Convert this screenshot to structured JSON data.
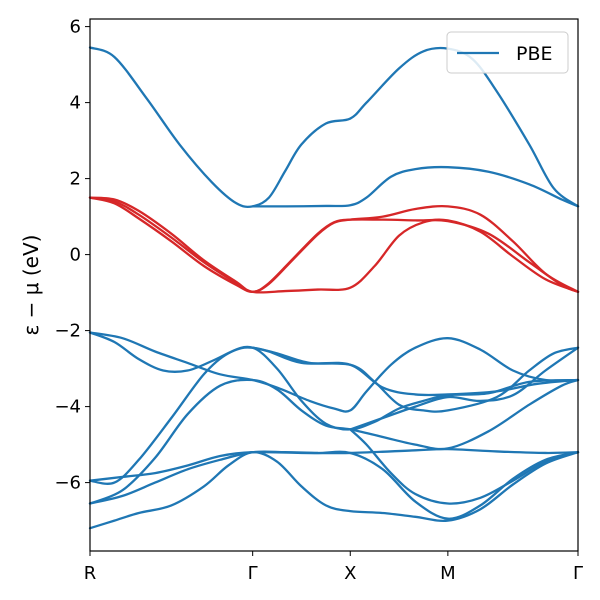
{
  "chart_data": {
    "type": "line",
    "title": "",
    "xlabel": "",
    "ylabel": "ε − μ (eV)",
    "ylim": [
      -7.8,
      6.2
    ],
    "xlim": [
      0,
      3
    ],
    "grid": false,
    "legend_position": "top-right",
    "legend": [
      {
        "name": "PBE",
        "color": "#1f77b4"
      }
    ],
    "x_ticks": [
      {
        "value": 0,
        "label": "R"
      },
      {
        "value": 1,
        "label": "Γ"
      },
      {
        "value": 1.6,
        "label": "X"
      },
      {
        "value": 2.2,
        "label": "M"
      },
      {
        "value": 3,
        "label": "Γ"
      }
    ],
    "y_ticks": [
      {
        "value": 6,
        "label": "6"
      },
      {
        "value": 4,
        "label": "4"
      },
      {
        "value": 2,
        "label": "2"
      },
      {
        "value": 0,
        "label": "0"
      },
      {
        "value": -2,
        "label": "−2"
      },
      {
        "value": -4,
        "label": "−4"
      },
      {
        "value": -6,
        "label": "−6"
      }
    ],
    "colors": {
      "bands": "#1f77b4",
      "highlight": "#d62728"
    },
    "series": [
      {
        "color": "#1f77b4",
        "points": [
          [
            0,
            5.45
          ],
          [
            0.15,
            5.2
          ],
          [
            0.35,
            4.1
          ],
          [
            0.55,
            2.9
          ],
          [
            0.75,
            1.9
          ],
          [
            0.9,
            1.35
          ],
          [
            1.0,
            1.27
          ],
          [
            1.1,
            1.5
          ],
          [
            1.2,
            2.2
          ],
          [
            1.3,
            2.9
          ],
          [
            1.45,
            3.45
          ],
          [
            1.6,
            3.58
          ],
          [
            1.7,
            4.0
          ],
          [
            1.9,
            4.9
          ],
          [
            2.05,
            5.35
          ],
          [
            2.2,
            5.42
          ],
          [
            2.35,
            5.15
          ],
          [
            2.5,
            4.3
          ],
          [
            2.7,
            2.9
          ],
          [
            2.85,
            1.75
          ],
          [
            3.0,
            1.27
          ]
        ]
      },
      {
        "color": "#1f77b4",
        "points": [
          [
            1.0,
            1.27
          ],
          [
            1.2,
            1.27
          ],
          [
            1.45,
            1.28
          ],
          [
            1.6,
            1.3
          ],
          [
            1.7,
            1.5
          ],
          [
            1.85,
            2.05
          ],
          [
            2.0,
            2.25
          ],
          [
            2.2,
            2.3
          ],
          [
            2.45,
            2.18
          ],
          [
            2.7,
            1.85
          ],
          [
            2.9,
            1.45
          ],
          [
            3.0,
            1.27
          ]
        ]
      },
      {
        "color": "#d62728",
        "points": [
          [
            0,
            1.5
          ],
          [
            0.15,
            1.4
          ],
          [
            0.3,
            1.05
          ],
          [
            0.5,
            0.45
          ],
          [
            0.7,
            -0.2
          ],
          [
            0.9,
            -0.75
          ],
          [
            1.0,
            -0.98
          ],
          [
            1.1,
            -0.75
          ],
          [
            1.25,
            -0.1
          ],
          [
            1.4,
            0.55
          ],
          [
            1.5,
            0.85
          ],
          [
            1.6,
            0.92
          ],
          [
            1.8,
            0.92
          ],
          [
            2.0,
            0.9
          ],
          [
            2.2,
            0.88
          ],
          [
            2.45,
            0.55
          ],
          [
            2.7,
            -0.2
          ],
          [
            2.9,
            -0.8
          ],
          [
            3.0,
            -0.98
          ]
        ]
      },
      {
        "color": "#d62728",
        "points": [
          [
            0,
            1.5
          ],
          [
            0.15,
            1.35
          ],
          [
            0.3,
            0.95
          ],
          [
            0.5,
            0.35
          ],
          [
            0.7,
            -0.3
          ],
          [
            0.9,
            -0.8
          ],
          [
            1.0,
            -0.98
          ],
          [
            1.1,
            -0.77
          ],
          [
            1.25,
            -0.12
          ],
          [
            1.4,
            0.53
          ],
          [
            1.5,
            0.84
          ],
          [
            1.6,
            0.92
          ],
          [
            1.8,
            1.0
          ],
          [
            2.0,
            1.2
          ],
          [
            2.2,
            1.27
          ],
          [
            2.4,
            1.05
          ],
          [
            2.6,
            0.35
          ],
          [
            2.8,
            -0.5
          ],
          [
            3.0,
            -0.98
          ]
        ]
      },
      {
        "color": "#d62728",
        "points": [
          [
            0,
            1.5
          ],
          [
            0.15,
            1.45
          ],
          [
            0.3,
            1.15
          ],
          [
            0.5,
            0.55
          ],
          [
            0.7,
            -0.15
          ],
          [
            0.9,
            -0.72
          ],
          [
            1.0,
            -0.98
          ],
          [
            1.2,
            -0.96
          ],
          [
            1.4,
            -0.92
          ],
          [
            1.6,
            -0.87
          ],
          [
            1.75,
            -0.3
          ],
          [
            1.9,
            0.5
          ],
          [
            2.05,
            0.85
          ],
          [
            2.2,
            0.9
          ],
          [
            2.4,
            0.6
          ],
          [
            2.6,
            -0.05
          ],
          [
            2.8,
            -0.65
          ],
          [
            3.0,
            -0.98
          ]
        ]
      },
      {
        "color": "#1f77b4",
        "points": [
          [
            0,
            -2.05
          ],
          [
            0.15,
            -2.3
          ],
          [
            0.3,
            -2.75
          ],
          [
            0.45,
            -3.05
          ],
          [
            0.6,
            -3.05
          ],
          [
            0.75,
            -2.8
          ],
          [
            0.9,
            -2.5
          ],
          [
            1.0,
            -2.45
          ],
          [
            1.15,
            -2.6
          ],
          [
            1.35,
            -2.85
          ],
          [
            1.6,
            -2.9
          ],
          [
            1.8,
            -3.5
          ],
          [
            2.0,
            -3.68
          ],
          [
            2.2,
            -3.68
          ],
          [
            2.5,
            -3.6
          ],
          [
            2.75,
            -3.4
          ],
          [
            3.0,
            -3.3
          ]
        ]
      },
      {
        "color": "#1f77b4",
        "points": [
          [
            0,
            -2.05
          ],
          [
            0.2,
            -2.2
          ],
          [
            0.4,
            -2.55
          ],
          [
            0.6,
            -2.85
          ],
          [
            0.8,
            -3.15
          ],
          [
            1.0,
            -3.3
          ],
          [
            1.15,
            -3.5
          ],
          [
            1.35,
            -3.85
          ],
          [
            1.5,
            -4.05
          ],
          [
            1.6,
            -4.1
          ],
          [
            1.7,
            -3.6
          ],
          [
            1.85,
            -2.9
          ],
          [
            2.0,
            -2.45
          ],
          [
            2.2,
            -2.2
          ],
          [
            2.4,
            -2.5
          ],
          [
            2.6,
            -3.05
          ],
          [
            2.8,
            -3.3
          ],
          [
            3.0,
            -3.3
          ]
        ]
      },
      {
        "color": "#1f77b4",
        "points": [
          [
            1.0,
            -2.45
          ],
          [
            1.1,
            -2.55
          ],
          [
            1.3,
            -2.85
          ],
          [
            1.6,
            -2.9
          ],
          [
            1.75,
            -3.35
          ],
          [
            1.9,
            -3.95
          ],
          [
            2.05,
            -4.1
          ],
          [
            2.2,
            -4.1
          ],
          [
            2.5,
            -3.75
          ],
          [
            2.7,
            -3.05
          ],
          [
            2.85,
            -2.6
          ],
          [
            3.0,
            -2.45
          ]
        ]
      },
      {
        "color": "#1f77b4",
        "points": [
          [
            0,
            -5.95
          ],
          [
            0.15,
            -6.0
          ],
          [
            0.3,
            -5.4
          ],
          [
            0.5,
            -4.3
          ],
          [
            0.7,
            -3.15
          ],
          [
            0.85,
            -2.6
          ],
          [
            1.0,
            -2.45
          ],
          [
            1.15,
            -3.0
          ],
          [
            1.3,
            -3.85
          ],
          [
            1.45,
            -4.45
          ],
          [
            1.6,
            -4.6
          ],
          [
            1.75,
            -4.4
          ],
          [
            1.9,
            -4.05
          ],
          [
            2.05,
            -3.85
          ],
          [
            2.2,
            -3.7
          ],
          [
            2.45,
            -3.65
          ],
          [
            2.7,
            -3.35
          ],
          [
            3.0,
            -3.3
          ]
        ]
      },
      {
        "color": "#1f77b4",
        "points": [
          [
            0,
            -6.55
          ],
          [
            0.2,
            -6.2
          ],
          [
            0.4,
            -5.35
          ],
          [
            0.6,
            -4.2
          ],
          [
            0.8,
            -3.45
          ],
          [
            1.0,
            -3.3
          ],
          [
            1.15,
            -3.55
          ],
          [
            1.3,
            -4.1
          ],
          [
            1.45,
            -4.5
          ],
          [
            1.6,
            -4.6
          ],
          [
            1.8,
            -4.8
          ],
          [
            2.0,
            -5.0
          ],
          [
            2.2,
            -5.1
          ],
          [
            2.45,
            -4.65
          ],
          [
            2.7,
            -3.95
          ],
          [
            2.9,
            -3.45
          ],
          [
            3.0,
            -3.3
          ]
        ]
      },
      {
        "color": "#1f77b4",
        "points": [
          [
            1.6,
            -4.6
          ],
          [
            1.8,
            -4.3
          ],
          [
            2.0,
            -4.0
          ],
          [
            2.2,
            -3.75
          ],
          [
            2.4,
            -3.85
          ],
          [
            2.6,
            -3.7
          ],
          [
            2.8,
            -3.05
          ],
          [
            3.0,
            -2.45
          ]
        ]
      },
      {
        "color": "#1f77b4",
        "points": [
          [
            1.6,
            -4.6
          ],
          [
            1.7,
            -5.0
          ],
          [
            1.85,
            -5.75
          ],
          [
            2.0,
            -6.3
          ],
          [
            2.2,
            -6.55
          ],
          [
            2.4,
            -6.4
          ],
          [
            2.6,
            -5.95
          ],
          [
            2.8,
            -5.45
          ],
          [
            3.0,
            -5.2
          ]
        ]
      },
      {
        "color": "#1f77b4",
        "points": [
          [
            0,
            -5.95
          ],
          [
            0.2,
            -5.85
          ],
          [
            0.4,
            -5.75
          ],
          [
            0.6,
            -5.55
          ],
          [
            0.8,
            -5.3
          ],
          [
            1.0,
            -5.2
          ],
          [
            1.3,
            -5.22
          ],
          [
            1.6,
            -5.22
          ],
          [
            2.0,
            -5.15
          ],
          [
            2.2,
            -5.12
          ],
          [
            2.5,
            -5.18
          ],
          [
            2.8,
            -5.22
          ],
          [
            3.0,
            -5.2
          ]
        ]
      },
      {
        "color": "#1f77b4",
        "points": [
          [
            0,
            -6.55
          ],
          [
            0.2,
            -6.35
          ],
          [
            0.4,
            -6.0
          ],
          [
            0.6,
            -5.65
          ],
          [
            0.8,
            -5.4
          ],
          [
            1.0,
            -5.2
          ],
          [
            1.2,
            -5.2
          ],
          [
            1.4,
            -5.22
          ],
          [
            1.6,
            -5.22
          ],
          [
            1.8,
            -5.65
          ],
          [
            2.0,
            -6.5
          ],
          [
            2.2,
            -6.95
          ],
          [
            2.4,
            -6.6
          ],
          [
            2.6,
            -5.9
          ],
          [
            2.8,
            -5.4
          ],
          [
            3.0,
            -5.2
          ]
        ]
      },
      {
        "color": "#1f77b4",
        "points": [
          [
            0,
            -7.2
          ],
          [
            0.15,
            -7.0
          ],
          [
            0.3,
            -6.8
          ],
          [
            0.5,
            -6.6
          ],
          [
            0.7,
            -6.1
          ],
          [
            0.85,
            -5.55
          ],
          [
            1.0,
            -5.2
          ],
          [
            1.15,
            -5.45
          ],
          [
            1.3,
            -6.1
          ],
          [
            1.45,
            -6.6
          ],
          [
            1.6,
            -6.75
          ],
          [
            1.8,
            -6.8
          ],
          [
            2.0,
            -6.9
          ],
          [
            2.2,
            -7.0
          ],
          [
            2.4,
            -6.7
          ],
          [
            2.6,
            -6.05
          ],
          [
            2.8,
            -5.5
          ],
          [
            3.0,
            -5.2
          ]
        ]
      }
    ]
  }
}
